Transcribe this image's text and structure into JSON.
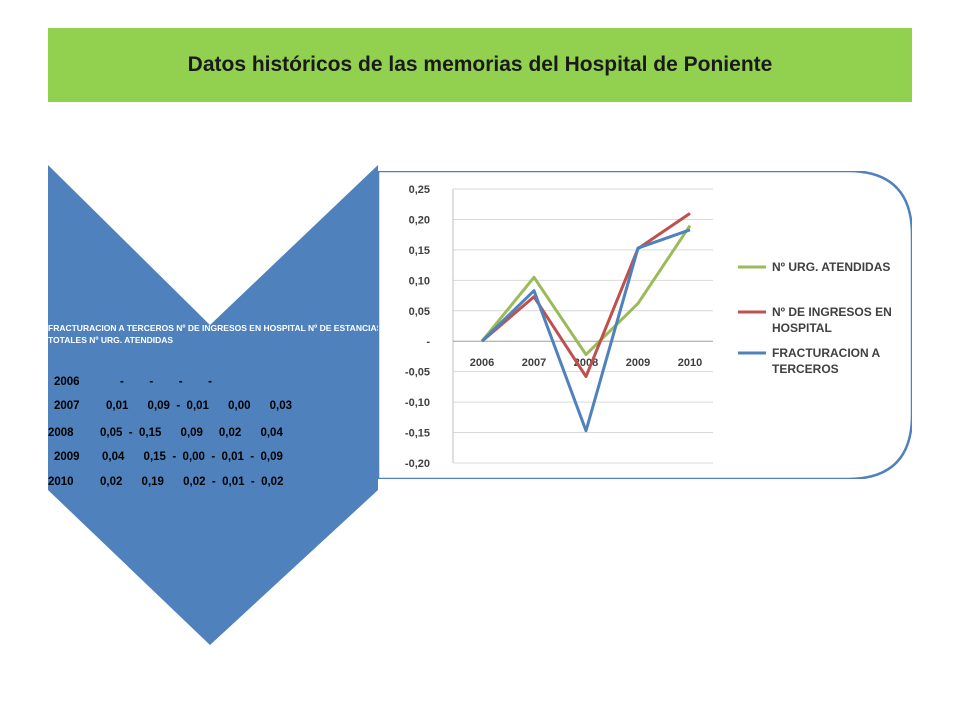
{
  "title": "Datos históricos de las memorias del Hospital de Poniente",
  "table": {
    "header": "FRACTURACION A TERCEROS Nº DE INGRESOS EN HOSPITAL Nº DE ESTANCIAS TOTALES Nº  URG. ATENDIDAS",
    "rows": [
      {
        "year": "2006",
        "values": "-        -        -        -"
      },
      {
        "year": "2007",
        "values": "0,01      0,09  -  0,01      0,00      0,03"
      },
      {
        "year": "2008",
        "values": "0,05  -  0,15      0,09     0,02      0,04"
      },
      {
        "year": "2009",
        "values": "0,04      0,15  -  0,00  -  0,01  -  0,09"
      },
      {
        "year": "2010",
        "values": "0,02      0,19      0,02  -  0,01  -  0,02"
      }
    ]
  },
  "colors": {
    "banner": "#92d050",
    "triangle": "#4f81bd",
    "chart_border": "#4f81bd",
    "green": "#9bbb59",
    "red": "#c0504d",
    "blue": "#4f81bd"
  },
  "chart_data": {
    "type": "line",
    "x": [
      "2006",
      "2007",
      "2008",
      "2009",
      "2010"
    ],
    "yticks": [
      "0,25",
      "0,20",
      "0,15",
      "0,10",
      "0,05",
      "-",
      "-0,05",
      "-0,10",
      "-0,15",
      "-0,20"
    ],
    "ylim": [
      -0.2,
      0.25
    ],
    "grid": true,
    "legend_position": "right",
    "series": [
      {
        "name": "Nº  URG. ATENDIDAS",
        "color": "#9bbb59",
        "values": [
          0.0,
          0.105,
          -0.022,
          0.062,
          0.19
        ]
      },
      {
        "name": "Nº DE INGRESOS EN HOSPITAL",
        "color": "#c0504d",
        "values": [
          0.0,
          0.073,
          -0.058,
          0.152,
          0.21
        ]
      },
      {
        "name": "FRACTURACION A TERCEROS",
        "color": "#4f81bd",
        "values": [
          0.0,
          0.083,
          -0.147,
          0.153,
          0.183
        ]
      }
    ]
  }
}
